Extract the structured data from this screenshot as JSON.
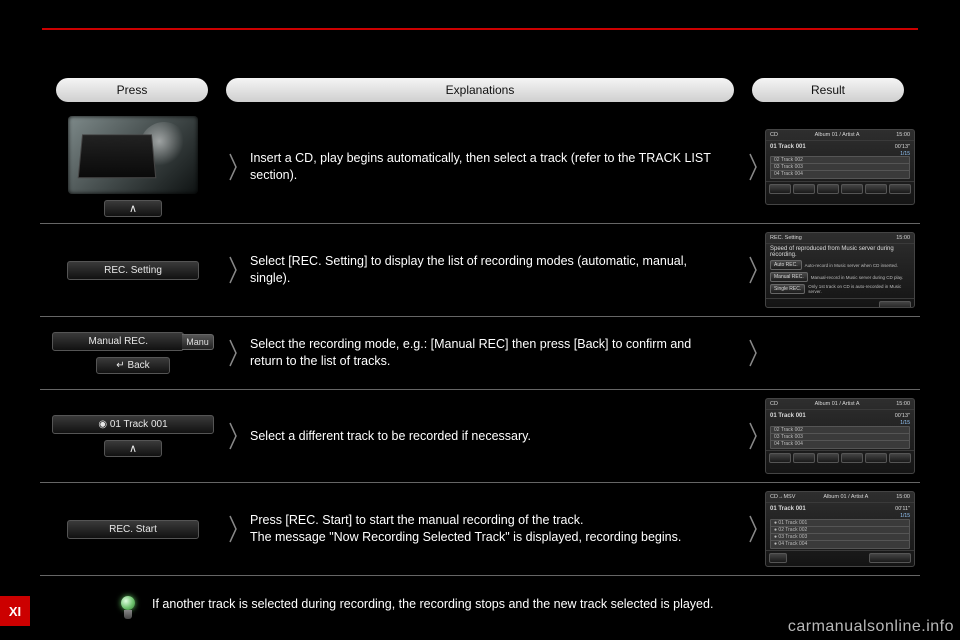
{
  "header": {
    "press": "Press",
    "explanations": "Explanations",
    "result": "Result"
  },
  "rows": [
    {
      "left": {
        "kind": "photo_caret"
      },
      "mid": "Insert a CD, play begins automatically, then select a track (refer to the TRACK LIST section).",
      "right": "cd_list"
    },
    {
      "left": {
        "kind": "button",
        "label": "REC. Setting"
      },
      "mid": "Select [REC. Setting] to display the list of recording modes (automatic, manual, single).",
      "right": "rec_setting"
    },
    {
      "left": {
        "kind": "manual_back",
        "label": "Manual REC.",
        "tag": "Manu",
        "back": "↵  Back"
      },
      "mid": "Select the recording mode, e.g.: [Manual REC] then press [Back] to confirm and return to the list of tracks.",
      "right": "none"
    },
    {
      "left": {
        "kind": "track_caret",
        "label": "◉   01    Track  001"
      },
      "mid": "Select a different track to be recorded if necessary.",
      "right": "cd_list"
    },
    {
      "left": {
        "kind": "button",
        "label": "REC. Start"
      },
      "mid": "Press [REC. Start] to start the manual recording of the track.\nThe message \"Now Recording Selected Track\" is displayed, recording begins.",
      "right": "cd_recording"
    }
  ],
  "tip": "If another track is selected during recording, the recording stops and the new track selected is played.",
  "tab": "XI",
  "watermark": "carmanualsonline.info",
  "mocks": {
    "cd_list": {
      "topL": "CD",
      "topC": "Album 01 / Artist A",
      "topR": "15:00",
      "now": "01 Track 001",
      "time": "00'13\"",
      "count": "1/15",
      "tracks": [
        "02   Track 002",
        "03   Track 003",
        "04   Track 004"
      ],
      "foot": [
        "Repeat",
        "Scan",
        "Random",
        "REC. Setting",
        "REC. Start",
        "↵ Back"
      ]
    },
    "rec_setting": {
      "title": "REC. Setting",
      "topR": "15:00",
      "desc": "Speed of reproduced from Music server during recording.",
      "opts": [
        {
          "b": "Auto REC.",
          "t": "Auto-record in Music server when CD inserted."
        },
        {
          "b": "Manual REC.",
          "t": "Manual-record in Music server during CD play."
        },
        {
          "b": "Single REC.",
          "t": "Only 1st track on CD is auto-recorded in Music server."
        }
      ],
      "back": "↵ Back"
    },
    "cd_recording": {
      "topL": "CD→MSV",
      "topC": "Album 01 / Artist A",
      "topR": "15:00",
      "now": "01 Track 001",
      "time": "00'11\"",
      "count": "1/15",
      "tracks": [
        "● 01   Track 001",
        "● 02   Track 002",
        "● 03   Track 003",
        "● 04   Track 004"
      ],
      "foot": [
        "⟲",
        "REC Stop"
      ]
    }
  },
  "caret": "∧"
}
